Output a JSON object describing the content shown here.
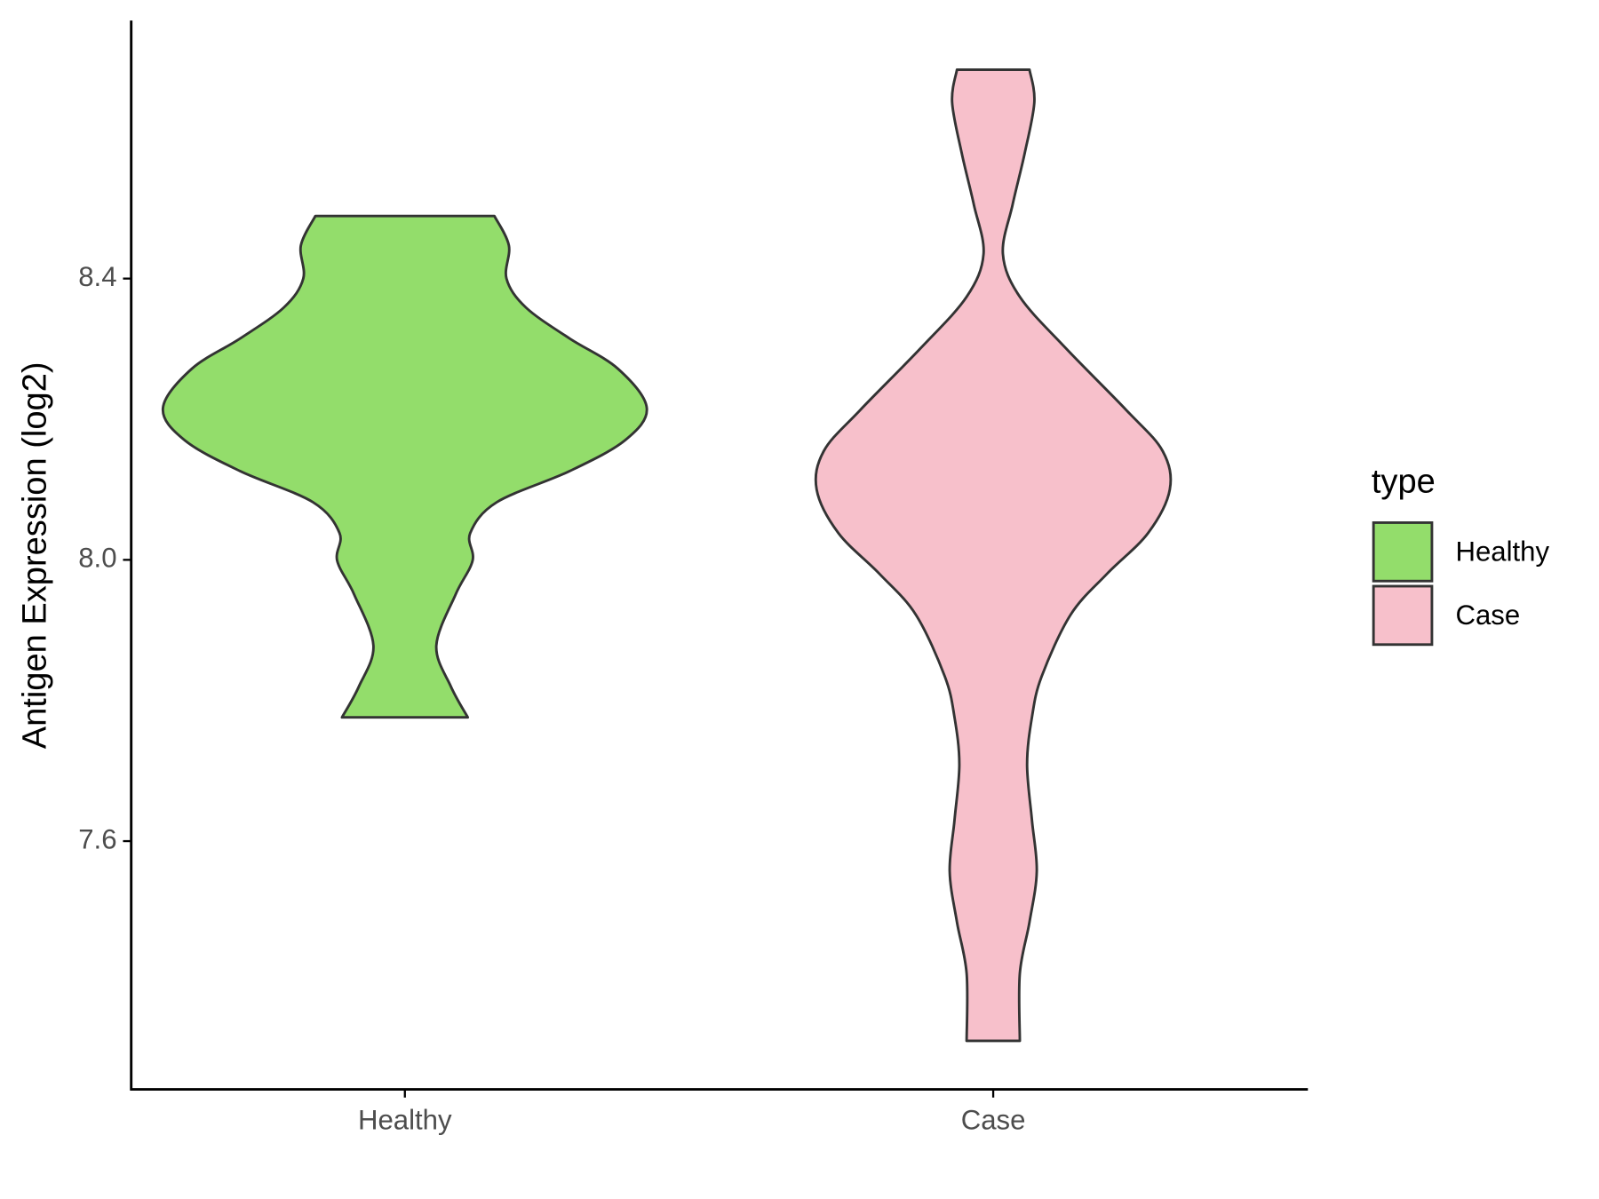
{
  "chart_data": {
    "type": "violin",
    "y_label": "Antigen Expression (log2)",
    "categories": [
      "Healthy",
      "Case"
    ],
    "legend_title": "type",
    "legend": "right",
    "ylim": [
      7.247,
      8.767
    ],
    "yticks": [
      8.4,
      {
        "value": 8,
        "label": "8.0"
      },
      7.6
    ],
    "series": [
      {
        "name": "Healthy",
        "color": "#93dd6b",
        "values": [
          8.489,
          8.447,
          8.4,
          8.359,
          8.315,
          8.272,
          8.216,
          8.17,
          8.126,
          8.082,
          8.038,
          7.999,
          7.951,
          7.878,
          7.82,
          7.776
        ],
        "density": [
          0.37,
          0.43,
          0.42,
          0.5,
          0.68,
          0.88,
          1.0,
          0.91,
          0.68,
          0.38,
          0.27,
          0.28,
          0.21,
          0.13,
          0.19,
          0.26
        ]
      },
      {
        "name": "Case",
        "color": "#f7c0cb",
        "values": [
          8.697,
          8.651,
          8.578,
          8.505,
          8.435,
          8.374,
          8.301,
          8.213,
          8.155,
          8.1,
          8.038,
          7.98,
          7.922,
          7.834,
          7.776,
          7.709,
          7.63,
          7.557,
          7.485,
          7.412,
          7.316
        ],
        "density": [
          0.15,
          0.17,
          0.13,
          0.08,
          0.04,
          0.11,
          0.3,
          0.55,
          0.7,
          0.73,
          0.64,
          0.47,
          0.32,
          0.2,
          0.16,
          0.14,
          0.16,
          0.18,
          0.15,
          0.11,
          0.11
        ]
      }
    ]
  }
}
